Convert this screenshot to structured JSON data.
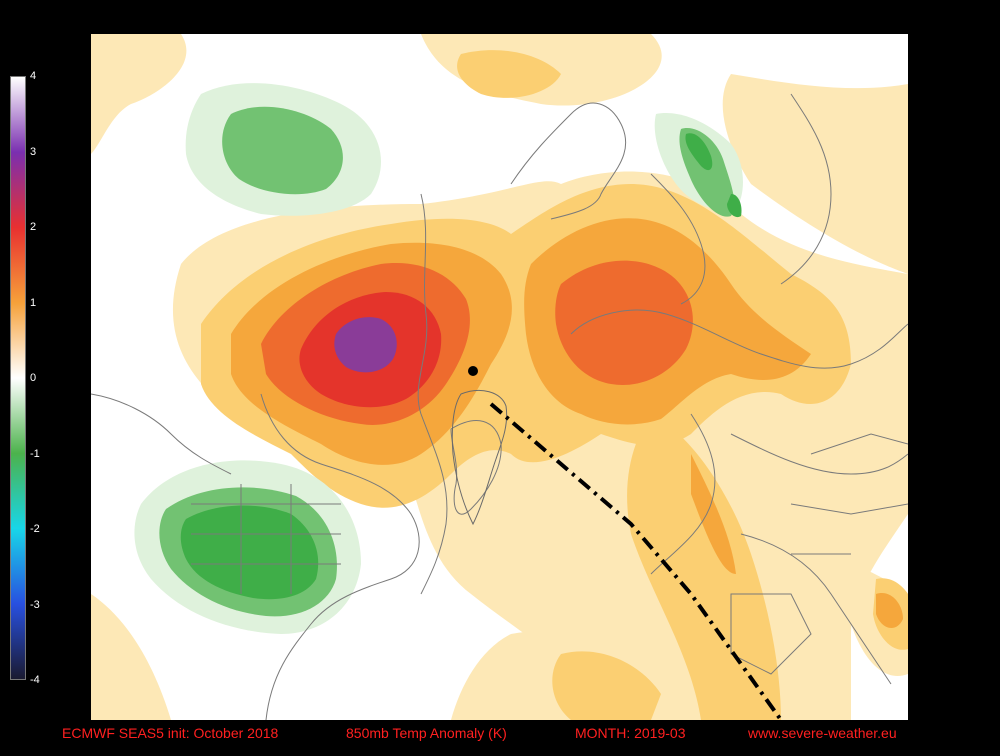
{
  "colorbar": {
    "ticks": [
      "4",
      "3",
      "2",
      "1",
      "0",
      "-1",
      "-2",
      "-3",
      "-4"
    ],
    "colors": [
      "#ffffff",
      "#7a2fb0",
      "#e83030",
      "#f6a13a",
      "#ffffff",
      "#4cb24c",
      "#18d6e8",
      "#2850e0",
      "#1a1a30"
    ]
  },
  "footer": {
    "model": "ECMWF SEAS5 init: October 2018",
    "variable": "850mb Temp Anomaly (K)",
    "month": "MONTH: 2019-03",
    "site": "www.severe-weather.eu"
  },
  "map": {
    "anomaly_colors": {
      "light_orange": "#fde8b6",
      "orange": "#fbcf72",
      "deep_orange": "#f5a73c",
      "red_orange": "#ee6b2e",
      "red": "#e4342b",
      "purple": "#8a3c98",
      "light_green": "#dff2dc",
      "green": "#72c272",
      "dark_green": "#3fae48"
    }
  }
}
